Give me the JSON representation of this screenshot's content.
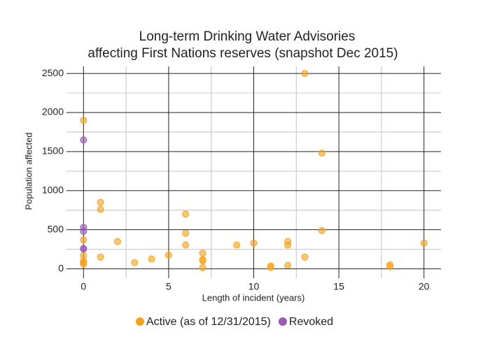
{
  "chart_data": {
    "type": "scatter",
    "title": "Long-term Drinking Water Advisories",
    "subtitle": "affecting First Nations reserves (snapshot Dec 2015)",
    "x_label": "Length of incident (years)",
    "y_label": "Population affected",
    "xlim": [
      -1,
      21
    ],
    "xticks": [
      0,
      5,
      10,
      15,
      20
    ],
    "ylim": [
      -120,
      2590
    ],
    "yticks": [
      0,
      500,
      1000,
      1500,
      2000,
      2500
    ],
    "grid": true,
    "legend": "bottom",
    "series": [
      {
        "name": "Active (as of 12/31/2015)",
        "color": "#f7a21b",
        "x": [
          0,
          0,
          0,
          0,
          0,
          0,
          1,
          1,
          1,
          2,
          3,
          4,
          5,
          6,
          6,
          6,
          7,
          7,
          7,
          7,
          9,
          10,
          11,
          11,
          12,
          12,
          12,
          13,
          13,
          14,
          14,
          18,
          18,
          20
        ],
        "values": [
          1900,
          370,
          170,
          100,
          80,
          60,
          850,
          760,
          150,
          350,
          80,
          125,
          175,
          700,
          455,
          305,
          200,
          115,
          105,
          15,
          305,
          330,
          35,
          20,
          350,
          305,
          45,
          2500,
          150,
          1480,
          490,
          50,
          30,
          330
        ]
      },
      {
        "name": "Revoked",
        "color": "#9b59b6",
        "x": [
          0,
          0,
          0,
          0,
          0
        ],
        "values": [
          1650,
          530,
          480,
          260,
          255
        ]
      }
    ]
  }
}
